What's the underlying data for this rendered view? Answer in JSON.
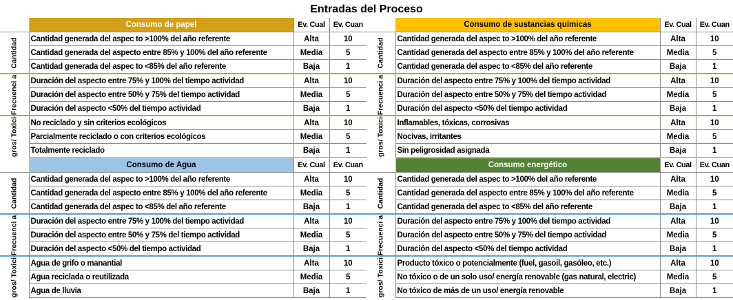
{
  "title": "Entradas del Proceso",
  "col_cual": "Ev. Cual",
  "col_cuan": "Ev. Cuan",
  "colors": {
    "papel": "#d4a017",
    "quimicas": "#ffc000",
    "agua": "#9dc3e6",
    "energetico": "#548235",
    "sep_orange": "#d4a017",
    "sep_blue": "#5b9bd5"
  },
  "panels": [
    {
      "id": "papel",
      "header": "Consumo de papel",
      "groups": [
        {
          "label": "Cantidad",
          "rows": [
            {
              "desc": "Cantidad generada del aspec to >100% del año referente",
              "cual": "Alta",
              "cuan": "10"
            },
            {
              "desc": "Cantidad generada del aspecto entre 85% y 100% del año referente",
              "cual": "Media",
              "cuan": "5"
            },
            {
              "desc": "Cantidad generada del aspec to <85% del año referente",
              "cual": "Baja",
              "cuan": "1"
            }
          ]
        },
        {
          "label": "Frecuenci a",
          "rows": [
            {
              "desc": "Duración del aspecto entre 75% y 100% del tiempo actividad",
              "cual": "Alta",
              "cuan": "10"
            },
            {
              "desc": "Duración del aspecto entre 50% y 75% del tiempo actividad",
              "cual": "Media",
              "cuan": "5"
            },
            {
              "desc": "Duración del aspecto <50% del tiempo actividad",
              "cual": "Baja",
              "cuan": "1"
            }
          ]
        },
        {
          "label": "Peligros/ Toxicidad",
          "rows": [
            {
              "desc": "No reciclado y sin criterios ecológicos",
              "cual": "Alta",
              "cuan": "10"
            },
            {
              "desc": "Parcialmente reciclado o con criterios ecológicos",
              "cual": "Media",
              "cuan": "5"
            },
            {
              "desc": "Totalmente reciclado",
              "cual": "Baja",
              "cuan": "1"
            }
          ]
        }
      ]
    },
    {
      "id": "quimicas",
      "header": "Consumo de sustancias químicas",
      "groups": [
        {
          "label": "Cantidad",
          "rows": [
            {
              "desc": "Cantidad generada del aspec to >100% del año referente",
              "cual": "Alta",
              "cuan": "10"
            },
            {
              "desc": "Cantidad generada del aspecto entre 85% y 100% del año referente",
              "cual": "Media",
              "cuan": "5"
            },
            {
              "desc": "Cantidad generada del aspec to <85% del año referente",
              "cual": "Baja",
              "cuan": "1"
            }
          ]
        },
        {
          "label": "Frecuenci a",
          "rows": [
            {
              "desc": "Duración del aspecto entre 75% y 100% del tiempo actividad",
              "cual": "Alta",
              "cuan": "10"
            },
            {
              "desc": "Duración del aspecto entre 50% y 75% del tiempo actividad",
              "cual": "Media",
              "cuan": "5"
            },
            {
              "desc": "Duración del aspecto <50% del tiempo actividad",
              "cual": "Baja",
              "cuan": "1"
            }
          ]
        },
        {
          "label": "Peligros/ Toxicidad",
          "rows": [
            {
              "desc": "Inflamables, tóxicas, corrosivas",
              "cual": "Alta",
              "cuan": "10"
            },
            {
              "desc": "Nocivas, irritantes",
              "cual": "Media",
              "cuan": "5"
            },
            {
              "desc": "Sin peligrosidad asignada",
              "cual": "Baja",
              "cuan": "1"
            }
          ]
        }
      ]
    },
    {
      "id": "agua",
      "header": "Consumo de Agua",
      "groups": [
        {
          "label": "Cantidad",
          "rows": [
            {
              "desc": "Cantidad generada del aspec to >100% del año referente",
              "cual": "Alta",
              "cuan": "10"
            },
            {
              "desc": "Cantidad generada del aspecto entre 85% y 100% del año referente",
              "cual": "Media",
              "cuan": "5"
            },
            {
              "desc": "Cantidad generada del aspec to <85% del año referente",
              "cual": "Baja",
              "cuan": "1"
            }
          ]
        },
        {
          "label": "Frecuenci a",
          "rows": [
            {
              "desc": "Duración del aspecto entre 75% y 100% del tiempo actividad",
              "cual": "Alta",
              "cuan": "10"
            },
            {
              "desc": "Duración del aspecto entre 50% y 75% del tiempo actividad",
              "cual": "Media",
              "cuan": "5"
            },
            {
              "desc": "Duración del aspecto <50% del tiempo actividad",
              "cual": "Baja",
              "cuan": "1"
            }
          ]
        },
        {
          "label": "Peligros/ Toxicidad",
          "rows": [
            {
              "desc": "Agua de grifo o manantial",
              "cual": "Alta",
              "cuan": "10"
            },
            {
              "desc": "Agua reciclada o reutilizada",
              "cual": "Media",
              "cuan": "5"
            },
            {
              "desc": "Agua de lluvia",
              "cual": "Baja",
              "cuan": "1"
            }
          ]
        }
      ]
    },
    {
      "id": "energetico",
      "header": "Consumo energético",
      "groups": [
        {
          "label": "Cantidad",
          "rows": [
            {
              "desc": "Cantidad generada del aspec to >100% del año referente",
              "cual": "Alta",
              "cuan": "10"
            },
            {
              "desc": "Cantidad generada del aspecto entre 85% y 100% del año referente",
              "cual": "Media",
              "cuan": "5"
            },
            {
              "desc": "Cantidad generada del aspec to <85% del año referente",
              "cual": "Baja",
              "cuan": "1"
            }
          ]
        },
        {
          "label": "Frecuenci a",
          "rows": [
            {
              "desc": "Duración del aspecto entre 75% y 100% del tiempo actividad",
              "cual": "Alta",
              "cuan": "10"
            },
            {
              "desc": "Duración del aspecto entre 50% y 75% del tiempo actividad",
              "cual": "Media",
              "cuan": "5"
            },
            {
              "desc": "Duración del aspecto <50% del tiempo actividad",
              "cual": "Baja",
              "cuan": "1"
            }
          ]
        },
        {
          "label": "Peligros/ Toxicidad",
          "rows": [
            {
              "desc": "Producto tóxico o potencialmente (fuel, gasoil, gasóleo, etc.)",
              "cual": "Alta",
              "cuan": "10"
            },
            {
              "desc": "No tóxico o de un solo uso/ energía renovable (gas natural, electric)",
              "cual": "Media",
              "cuan": "5"
            },
            {
              "desc": "No tóxico de más de un uso/ energía renovable",
              "cual": "Baja",
              "cuan": "1"
            }
          ]
        }
      ]
    }
  ]
}
